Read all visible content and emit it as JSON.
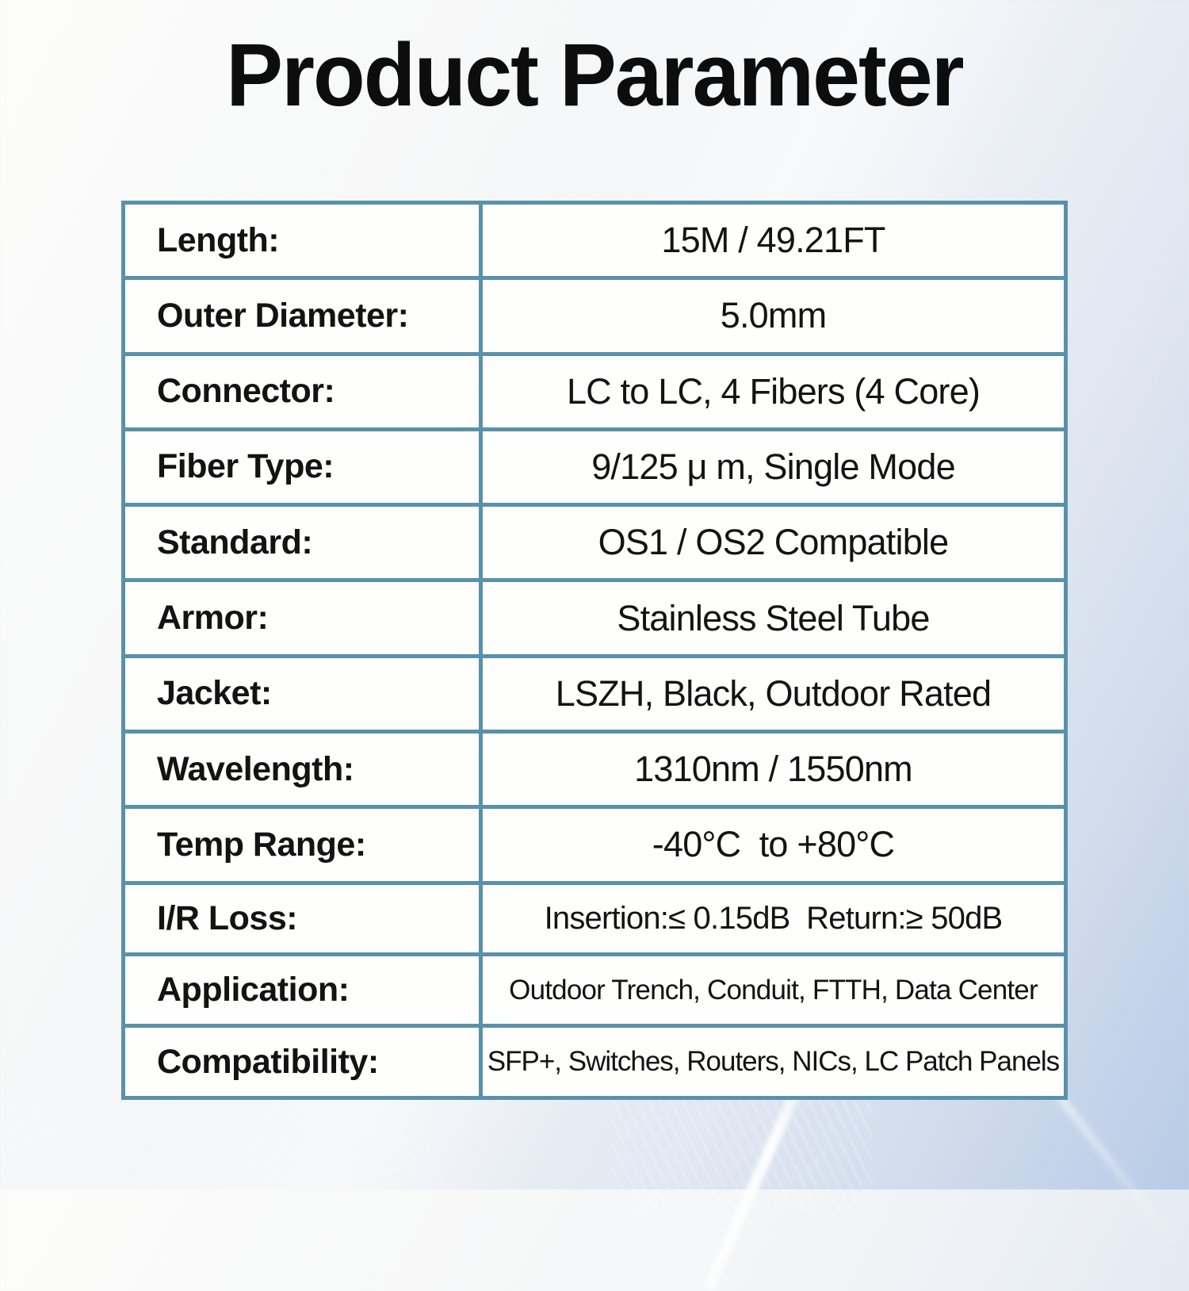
{
  "page": {
    "title": "Product Parameter"
  },
  "colors": {
    "table_border": "#5892aa",
    "cell_background": "#fefefd",
    "text": "#131313",
    "background_top_left": "#fcfcfb",
    "background_bottom_right": "#b8cbe6"
  },
  "table": {
    "rows": [
      {
        "label": "Length:",
        "value": "15M / 49.21FT"
      },
      {
        "label": "Outer Diameter:",
        "value": "5.0mm"
      },
      {
        "label": "Connector:",
        "value": "LC to LC, 4 Fibers (4 Core)"
      },
      {
        "label": "Fiber Type:",
        "value": "9/125 μ m, Single Mode"
      },
      {
        "label": "Standard:",
        "value": "OS1 / OS2 Compatible"
      },
      {
        "label": "Armor:",
        "value": "Stainless Steel Tube"
      },
      {
        "label": "Jacket:",
        "value": "LSZH, Black, Outdoor Rated"
      },
      {
        "label": "Wavelength:",
        "value": "1310nm / 1550nm"
      },
      {
        "label": "Temp Range:",
        "value": "-40°C  to +80°C"
      },
      {
        "label": "I/R Loss:",
        "value": "Insertion:≤ 0.15dB  Return:≥ 50dB"
      },
      {
        "label": "Application:",
        "value": "Outdoor Trench, Conduit, FTTH, Data Center"
      },
      {
        "label": "Compatibility:",
        "value": "SFP+, Switches, Routers, NICs, LC Patch Panels"
      }
    ]
  }
}
